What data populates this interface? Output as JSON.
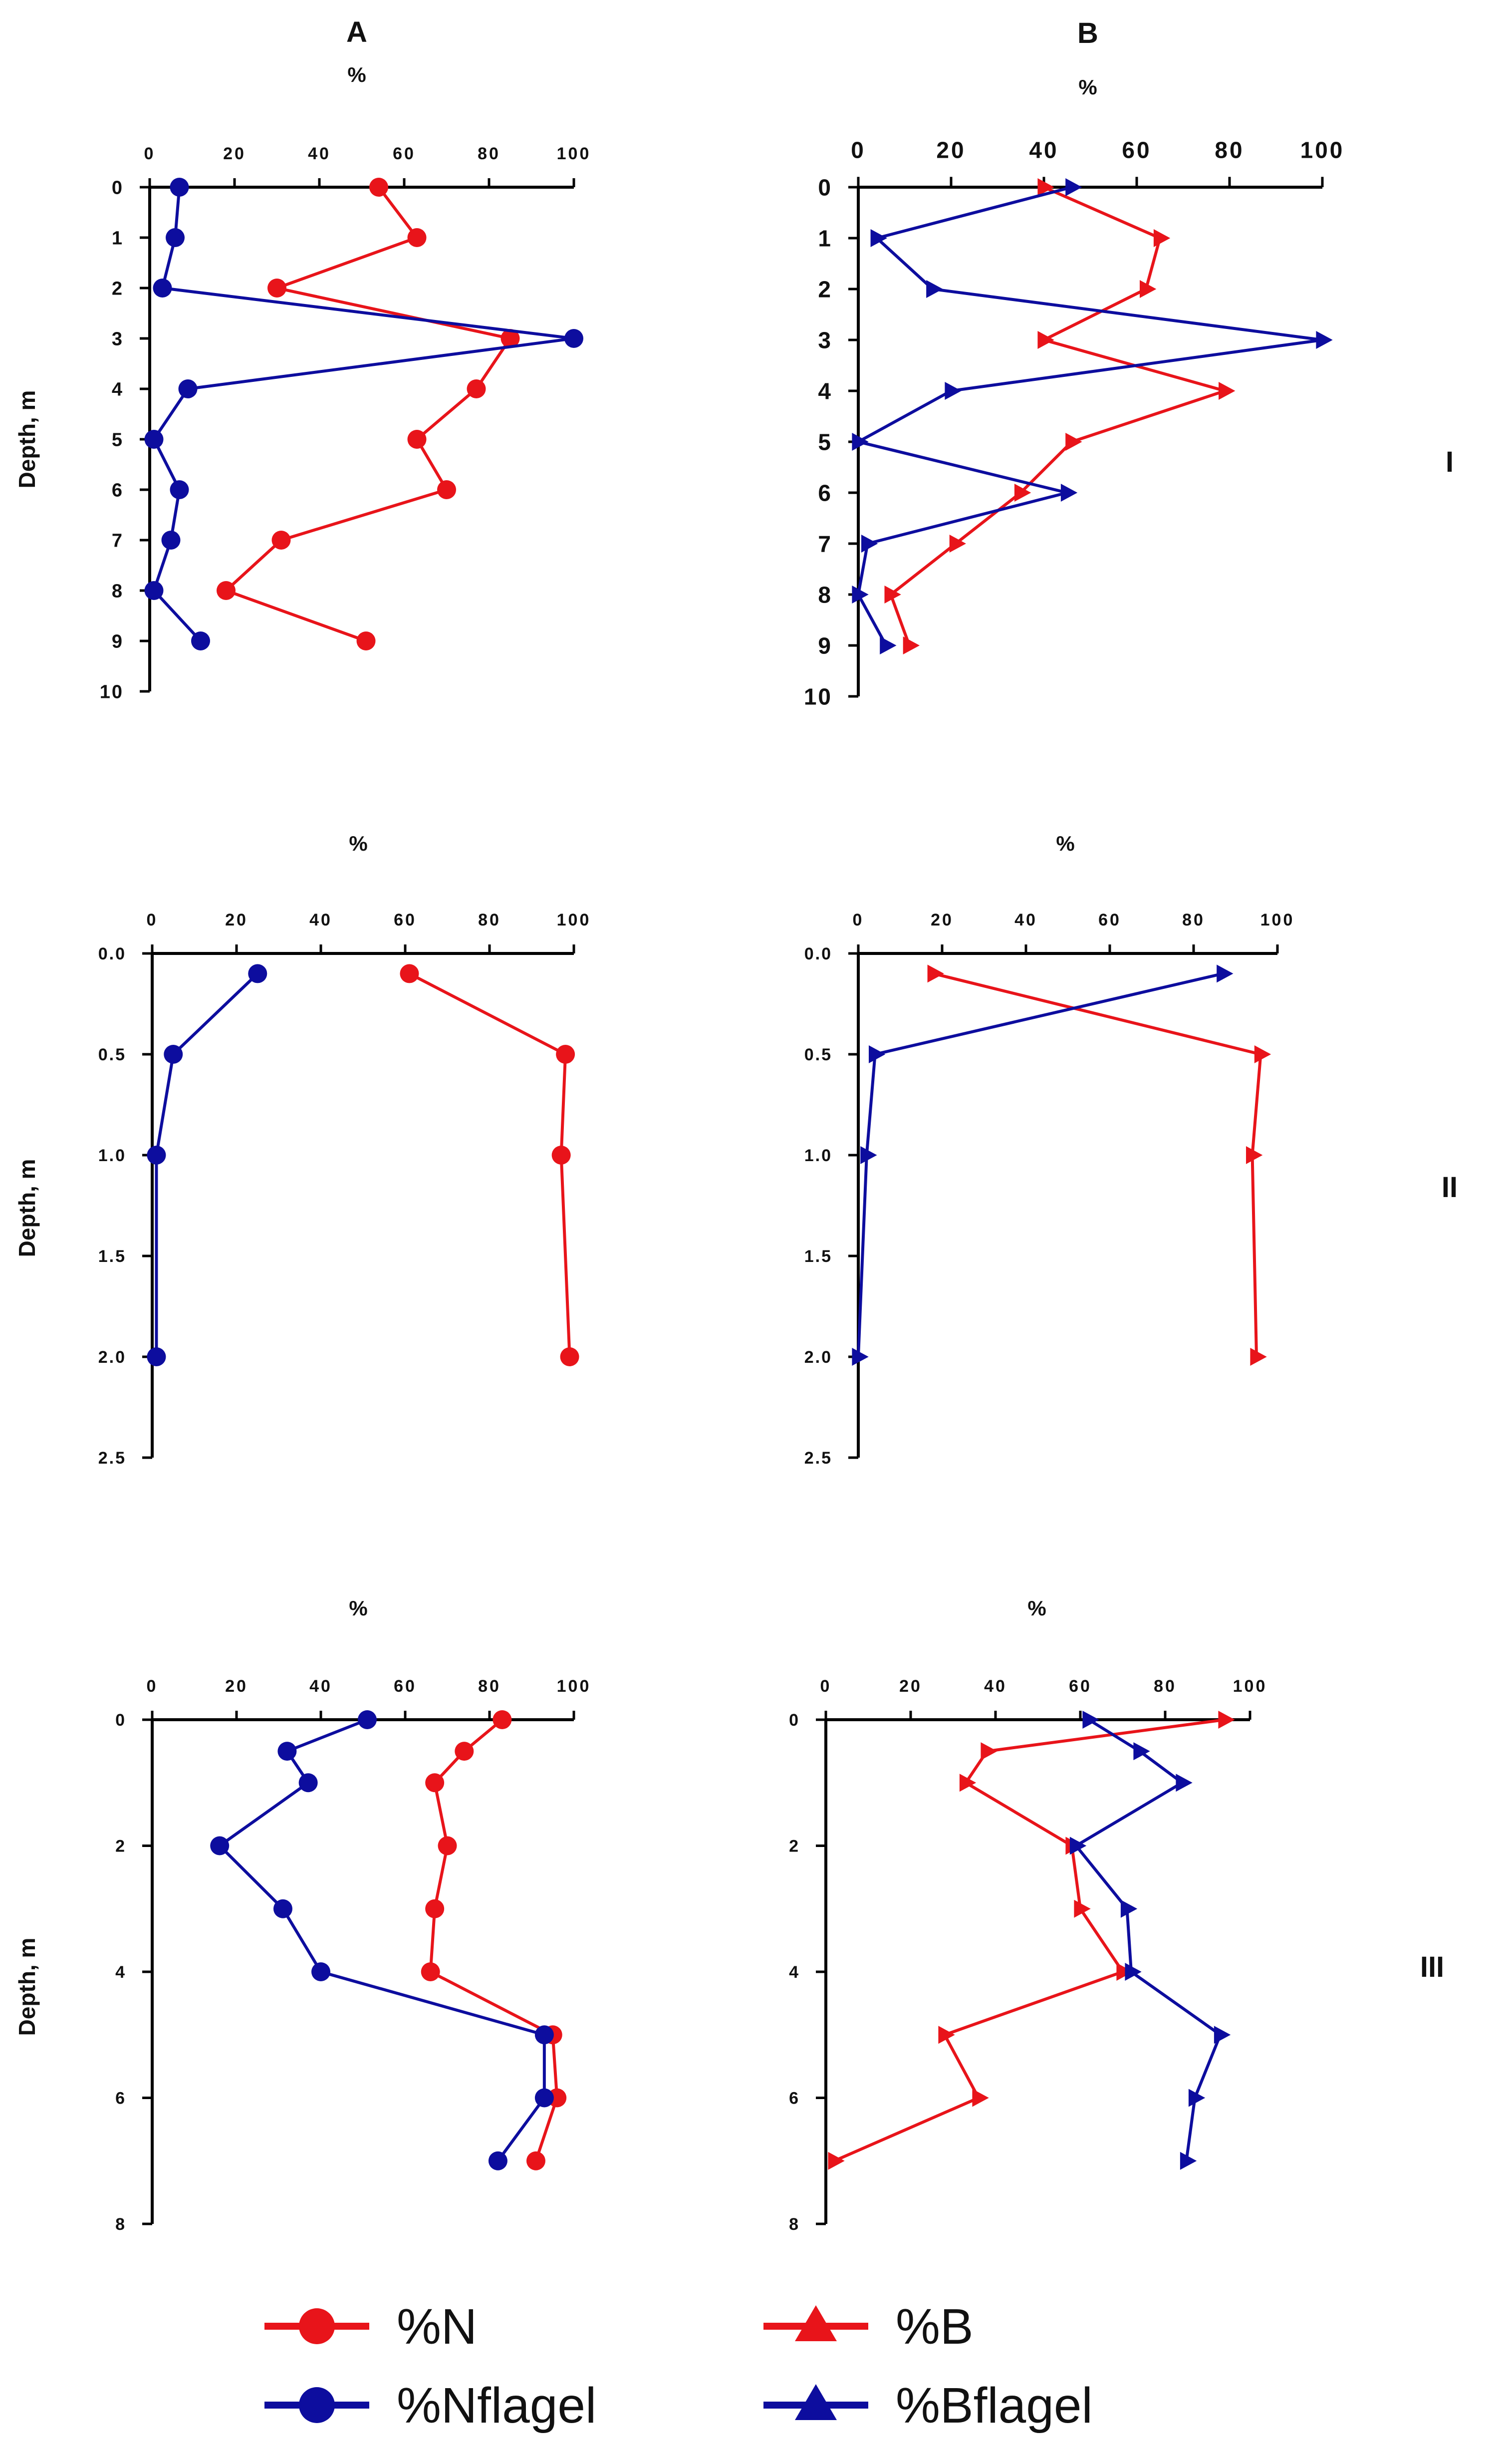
{
  "chart_data": [
    {
      "id": "I-A",
      "panel": "A",
      "row": "I",
      "type": "line",
      "column_label": "A",
      "xlabel": "%",
      "ylabel": "Depth, m",
      "xlim": [
        0,
        100
      ],
      "xticks": [
        0,
        20,
        40,
        60,
        80,
        100
      ],
      "xtick_labels": [
        "0",
        "20",
        "40",
        "60",
        "80",
        "100"
      ],
      "ylim": [
        0,
        10
      ],
      "yticks": [
        0,
        1,
        2,
        3,
        4,
        5,
        6,
        7,
        8,
        9,
        10
      ],
      "ytick_labels": [
        "0",
        "1",
        "2",
        "3",
        "4",
        "5",
        "6",
        "7",
        "8",
        "9",
        "10"
      ],
      "series": [
        {
          "name": "%N",
          "color": "#e8141a",
          "marker": "circle",
          "x": [
            54,
            63,
            30,
            85,
            77,
            63,
            70,
            31,
            18,
            51
          ],
          "y": [
            0,
            1,
            2,
            3,
            4,
            5,
            6,
            7,
            8,
            9
          ]
        },
        {
          "name": "%Nflagel",
          "color": "#0d0d9e",
          "marker": "circle",
          "x": [
            7,
            6,
            3,
            100,
            9,
            1,
            7,
            5,
            1,
            12
          ],
          "y": [
            0,
            1,
            2,
            3,
            4,
            5,
            6,
            7,
            8,
            9
          ]
        }
      ]
    },
    {
      "id": "I-B",
      "panel": "B",
      "row": "I",
      "type": "line",
      "column_label": "B",
      "xlabel": "%",
      "ylabel": "",
      "xlim": [
        0,
        100
      ],
      "xticks": [
        0,
        20,
        40,
        60,
        80,
        100
      ],
      "xtick_labels": [
        "0",
        "20",
        "40",
        "60",
        "80",
        "100"
      ],
      "ylim": [
        0,
        10
      ],
      "yticks": [
        0,
        1,
        2,
        3,
        4,
        5,
        6,
        7,
        8,
        9,
        10
      ],
      "ytick_labels": [
        "0",
        "1",
        "2",
        "3",
        "4",
        "5",
        "6",
        "7",
        "8",
        "9",
        "10"
      ],
      "series": [
        {
          "name": "%B",
          "color": "#e8141a",
          "marker": "triangle",
          "x": [
            40,
            65,
            62,
            40,
            79,
            46,
            35,
            21,
            7,
            11
          ],
          "y": [
            0,
            1,
            2,
            3,
            4,
            5,
            6,
            7,
            8,
            9
          ]
        },
        {
          "name": "%Bflagel",
          "color": "#0d0d9e",
          "marker": "triangle",
          "x": [
            46,
            4,
            16,
            100,
            20,
            0,
            45,
            2,
            0,
            6
          ],
          "y": [
            0,
            1,
            2,
            3,
            4,
            5,
            6,
            7,
            8,
            9
          ]
        }
      ]
    },
    {
      "id": "II-A",
      "panel": "A",
      "row": "II",
      "type": "line",
      "column_label": "",
      "xlabel": "%",
      "ylabel": "Depth, m",
      "xlim": [
        0,
        100
      ],
      "xticks": [
        0,
        20,
        40,
        60,
        80,
        100
      ],
      "xtick_labels": [
        "0",
        "20",
        "40",
        "60",
        "80",
        "100"
      ],
      "ylim": [
        0,
        2.5
      ],
      "yticks": [
        0,
        0.5,
        1.0,
        1.5,
        2.0,
        2.5
      ],
      "ytick_labels": [
        "0.0",
        "0.5",
        "1.0",
        "1.5",
        "2.0",
        "2.5"
      ],
      "series": [
        {
          "name": "%N",
          "color": "#e8141a",
          "marker": "circle",
          "x": [
            61,
            98,
            97,
            99
          ],
          "y": [
            0.1,
            0.5,
            1.0,
            2.0
          ]
        },
        {
          "name": "%Nflagel",
          "color": "#0d0d9e",
          "marker": "circle",
          "x": [
            25,
            5,
            1,
            1
          ],
          "y": [
            0.1,
            0.5,
            1.0,
            2.0
          ]
        }
      ]
    },
    {
      "id": "II-B",
      "panel": "B",
      "row": "II",
      "type": "line",
      "column_label": "",
      "xlabel": "%",
      "ylabel": "",
      "xlim": [
        0,
        100
      ],
      "xticks": [
        0,
        20,
        40,
        60,
        80,
        100
      ],
      "xtick_labels": [
        "0",
        "20",
        "40",
        "60",
        "80",
        "100"
      ],
      "ylim": [
        0,
        2.5
      ],
      "yticks": [
        0,
        0.5,
        1.0,
        1.5,
        2.0,
        2.5
      ],
      "ytick_labels": [
        "0.0",
        "0.5",
        "1.0",
        "1.5",
        "2.0",
        "2.5"
      ],
      "series": [
        {
          "name": "%B",
          "color": "#e8141a",
          "marker": "triangle",
          "x": [
            18,
            96,
            94,
            95
          ],
          "y": [
            0.1,
            0.5,
            1.0,
            2.0
          ]
        },
        {
          "name": "%Bflagel",
          "color": "#0d0d9e",
          "marker": "triangle",
          "x": [
            87,
            4,
            2,
            0
          ],
          "y": [
            0.1,
            0.5,
            1.0,
            2.0
          ]
        }
      ]
    },
    {
      "id": "III-A",
      "panel": "A",
      "row": "III",
      "type": "line",
      "column_label": "",
      "xlabel": "%",
      "ylabel": "Depth, m",
      "xlim": [
        0,
        100
      ],
      "xticks": [
        0,
        20,
        40,
        60,
        80,
        100
      ],
      "xtick_labels": [
        "0",
        "20",
        "40",
        "60",
        "80",
        "100"
      ],
      "ylim": [
        0,
        8
      ],
      "yticks": [
        0,
        2,
        4,
        6,
        8
      ],
      "ytick_labels": [
        "0",
        "2",
        "4",
        "6",
        "8"
      ],
      "series": [
        {
          "name": "%N",
          "color": "#e8141a",
          "marker": "circle",
          "x": [
            83,
            74,
            67,
            70,
            67,
            66,
            95,
            96,
            91
          ],
          "y": [
            0,
            0.5,
            1,
            2,
            3,
            4,
            5,
            6,
            7
          ]
        },
        {
          "name": "%Nflagel",
          "color": "#0d0d9e",
          "marker": "circle",
          "x": [
            51,
            32,
            37,
            16,
            31,
            40,
            93,
            93,
            82
          ],
          "y": [
            0,
            0.5,
            1,
            2,
            3,
            4,
            5,
            6,
            7
          ]
        }
      ]
    },
    {
      "id": "III-B",
      "panel": "B",
      "row": "III",
      "type": "line",
      "column_label": "",
      "xlabel": "%",
      "ylabel": "",
      "xlim": [
        0,
        100
      ],
      "xticks": [
        0,
        20,
        40,
        60,
        80,
        100
      ],
      "xtick_labels": [
        "0",
        "20",
        "40",
        "60",
        "80",
        "100"
      ],
      "ylim": [
        0,
        8
      ],
      "yticks": [
        0,
        2,
        4,
        6,
        8
      ],
      "ytick_labels": [
        "0",
        "2",
        "4",
        "6",
        "8"
      ],
      "series": [
        {
          "name": "%B",
          "color": "#e8141a",
          "marker": "triangle",
          "x": [
            94,
            38,
            33,
            58,
            60,
            70,
            28,
            36,
            2
          ],
          "y": [
            0,
            0.5,
            1,
            2,
            3,
            4,
            5,
            6,
            7
          ]
        },
        {
          "name": "%Bflagel",
          "color": "#0d0d9e",
          "marker": "triangle",
          "x": [
            62,
            74,
            84,
            59,
            71,
            72,
            93,
            87,
            85
          ],
          "y": [
            0,
            0.5,
            1,
            2,
            3,
            4,
            5,
            6,
            7
          ]
        }
      ]
    }
  ],
  "row_labels": [
    "I",
    "II",
    "III"
  ],
  "legend": {
    "position": "bottom",
    "items": [
      {
        "label": "%N",
        "color": "#e8141a",
        "marker": "circle"
      },
      {
        "label": "%B",
        "color": "#e8141a",
        "marker": "triangle"
      },
      {
        "label": "%Nflagel",
        "color": "#0d0d9e",
        "marker": "circle"
      },
      {
        "label": "%Bflagel",
        "color": "#0d0d9e",
        "marker": "triangle"
      }
    ]
  }
}
